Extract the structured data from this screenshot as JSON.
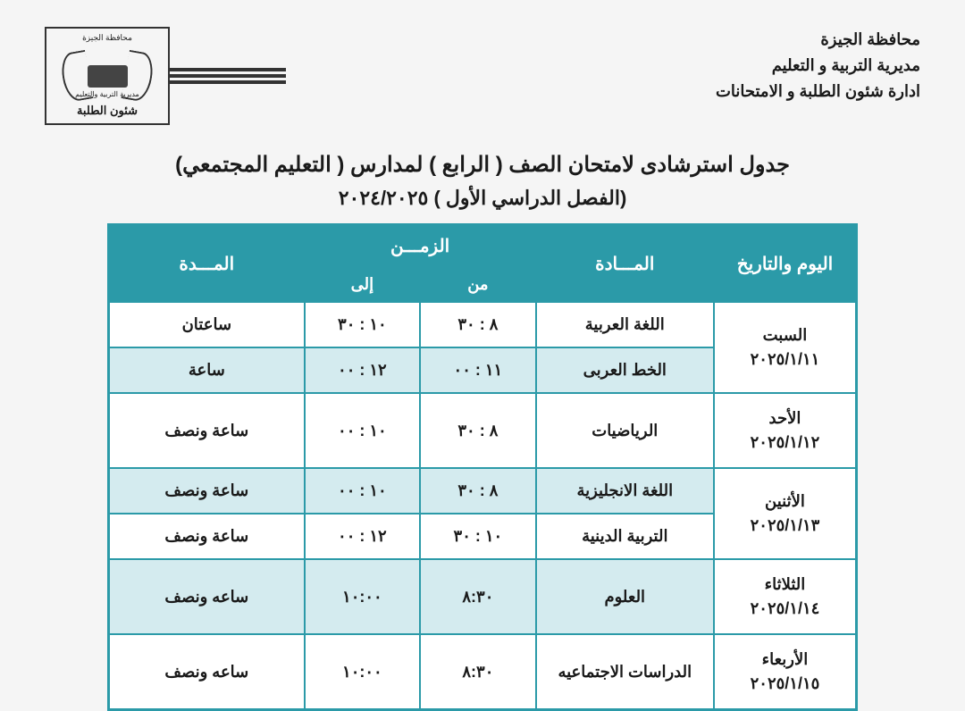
{
  "header": {
    "line1": "محافظة الجيزة",
    "line2": "مديرية التربية و التعليم",
    "line3": "ادارة شئون الطلبة و الامتحانات"
  },
  "logo": {
    "top_text": "محافظة الجيزة",
    "mid_text": "مديرية التربية والتعليم",
    "bottom_text": "شئون الطلبة"
  },
  "title": {
    "main": "جدول استرشادى لامتحان الصف ( الرابع ) لمدارس ( التعليم المجتمعي)",
    "sub": "(الفصل الدراسي الأول ) ٢٠٢٤/٢٠٢٥"
  },
  "table": {
    "headers": {
      "date": "اليوم والتاريخ",
      "subject": "المـــادة",
      "time": "الزمـــن",
      "from": "من",
      "to": "إلى",
      "duration": "المـــدة"
    },
    "rows": [
      {
        "day": "السبت",
        "date": "٢٠٢٥/١/١١",
        "subject": "اللغة العربية",
        "from": "٨ : ٣٠",
        "to": "١٠ : ٣٠",
        "duration": "ساعتان",
        "rowspanDate": 2,
        "alt": false
      },
      {
        "subject": "الخط العربى",
        "from": "١١ : ٠٠",
        "to": "١٢ : ٠٠",
        "duration": "ساعة",
        "alt": true
      },
      {
        "day": "الأحد",
        "date": "٢٠٢٥/١/١٢",
        "subject": "الرياضيات",
        "from": "٨ : ٣٠",
        "to": "١٠ : ٠٠",
        "duration": "ساعة ونصف",
        "rowspanDate": 1,
        "alt": false
      },
      {
        "day": "الأثنين",
        "date": "٢٠٢٥/١/١٣",
        "subject": "اللغة الانجليزية",
        "from": "٨ : ٣٠",
        "to": "١٠ : ٠٠",
        "duration": "ساعة ونصف",
        "rowspanDate": 2,
        "alt": true
      },
      {
        "subject": "التربية الدينية",
        "from": "١٠ : ٣٠",
        "to": "١٢ : ٠٠",
        "duration": "ساعة ونصف",
        "alt": false
      },
      {
        "day": "الثلاثاء",
        "date": "٢٠٢٥/١/١٤",
        "subject": "العلوم",
        "from": "٨:٣٠",
        "to": "١٠:٠٠",
        "duration": "ساعه ونصف",
        "rowspanDate": 1,
        "alt": true
      },
      {
        "day": "الأربعاء",
        "date": "٢٠٢٥/١/١٥",
        "subject": "الدراسات الاجتماعيه",
        "from": "٨:٣٠",
        "to": "١٠:٠٠",
        "duration": "ساعه ونصف",
        "rowspanDate": 1,
        "alt": false
      }
    ]
  },
  "colors": {
    "teal": "#2b9aa8",
    "alt_row": "#d4ebef",
    "bg": "#f5f5f5"
  }
}
